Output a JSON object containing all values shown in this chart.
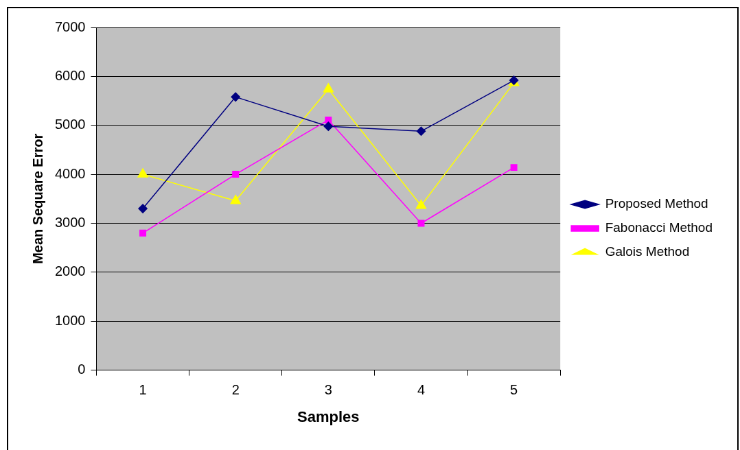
{
  "chart_data": {
    "type": "line",
    "xlabel": "Samples",
    "ylabel": "Mean Sequare Error",
    "categories": [
      "1",
      "2",
      "3",
      "4",
      "5"
    ],
    "series": [
      {
        "name": "Proposed Method",
        "color": "#000080",
        "marker": "diamond",
        "values": [
          3300,
          5580,
          4980,
          4880,
          5920
        ]
      },
      {
        "name": "Fabonacci Method",
        "color": "#ff00ff",
        "marker": "square",
        "values": [
          2800,
          4000,
          5110,
          3000,
          4140
        ]
      },
      {
        "name": "Galois Method",
        "color": "#ffff00",
        "marker": "triangle",
        "values": [
          4000,
          3460,
          5740,
          3360,
          5870
        ]
      }
    ],
    "ylim": [
      0,
      7000
    ],
    "yticks": [
      0,
      1000,
      2000,
      3000,
      4000,
      5000,
      6000,
      7000
    ],
    "grid": "y",
    "legend": "right",
    "line_style": "solid"
  }
}
